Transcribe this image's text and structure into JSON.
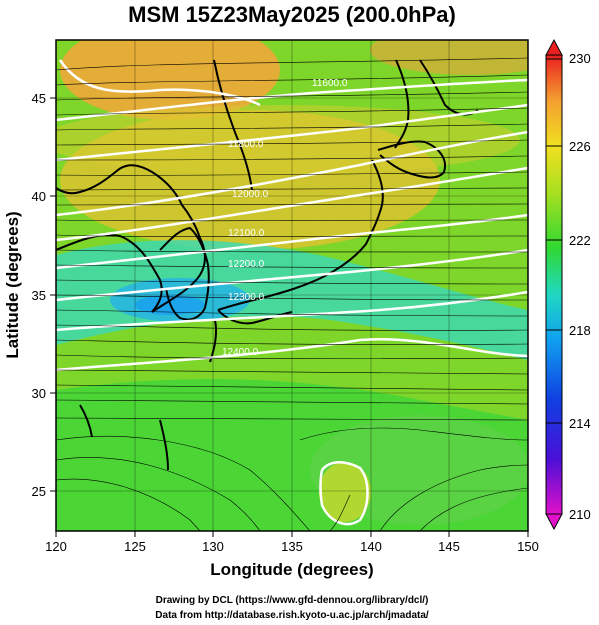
{
  "title": "MSM 15Z23May2025 (200.0hPa)",
  "xlabel": "Longitude (degrees)",
  "ylabel": "Latitude  (degrees)",
  "x_ticks": [
    "120",
    "125",
    "130",
    "135",
    "140",
    "145",
    "150"
  ],
  "y_ticks": [
    "25",
    "30",
    "35",
    "40",
    "45"
  ],
  "colorbar_ticks": [
    "230",
    "226",
    "222",
    "218",
    "214",
    "210"
  ],
  "credit_line1": "Drawing by DCL (https://www.gfd-dennou.org/library/dcl/)",
  "credit_line2": "Data from http://database.rish.kyoto-u.ac.jp/arch/jmadata/",
  "contour_labels": [
    "11600.0",
    "11800.0",
    "12000.0",
    "12100.0",
    "12200.0",
    "12300.0",
    "12400.0"
  ],
  "map": {
    "lon_range": [
      120,
      150
    ],
    "lat_range": [
      22.5,
      47.5
    ],
    "field": "temperature",
    "colorbar_range": [
      210,
      230
    ],
    "contour_field": "geopotential height",
    "colors": {
      "warm": "#f4a23a",
      "mid": "#9ad62a",
      "cool": "#2ad2c0",
      "coast": "#000000",
      "contour": "#ffffff"
    }
  }
}
